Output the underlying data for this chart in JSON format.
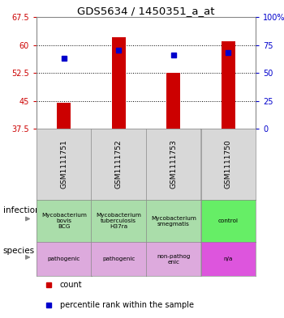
{
  "title": "GDS5634 / 1450351_a_at",
  "samples": [
    "GSM1111751",
    "GSM1111752",
    "GSM1111753",
    "GSM1111750"
  ],
  "bar_bottoms": [
    37.5,
    37.5,
    37.5,
    37.5
  ],
  "bar_tops": [
    44.5,
    62.0,
    52.5,
    61.0
  ],
  "percentile_values": [
    56.5,
    58.5,
    57.2,
    58.0
  ],
  "ylim": [
    37.5,
    67.5
  ],
  "yticks_left": [
    37.5,
    45.0,
    52.5,
    60.0,
    67.5
  ],
  "ytick_labels_left": [
    "37.5",
    "45",
    "52.5",
    "60",
    "67.5"
  ],
  "yticks_right_pct": [
    0,
    25,
    50,
    75,
    100
  ],
  "ytick_labels_right": [
    "0",
    "25",
    "50",
    "75",
    "100%"
  ],
  "bar_color": "#cc0000",
  "percentile_color": "#0000cc",
  "bar_width": 0.25,
  "infection_labels": [
    "Mycobacterium\nbovis\nBCG",
    "Mycobacterium\ntuberculosis\nH37ra",
    "Mycobacterium\nsmegmatis",
    "control"
  ],
  "infection_colors": [
    "#aaddaa",
    "#aaddaa",
    "#aaddaa",
    "#66ee66"
  ],
  "species_labels": [
    "pathogenic",
    "pathogenic",
    "non-pathogenic",
    "n/a"
  ],
  "species_colors": [
    "#ddaadd",
    "#ddaadd",
    "#ddaadd",
    "#dd55dd"
  ],
  "legend_count_label": "count",
  "legend_percentile_label": "percentile rank within the sample",
  "left_labels": [
    "infection",
    "species"
  ],
  "arrow_color": "#888888"
}
